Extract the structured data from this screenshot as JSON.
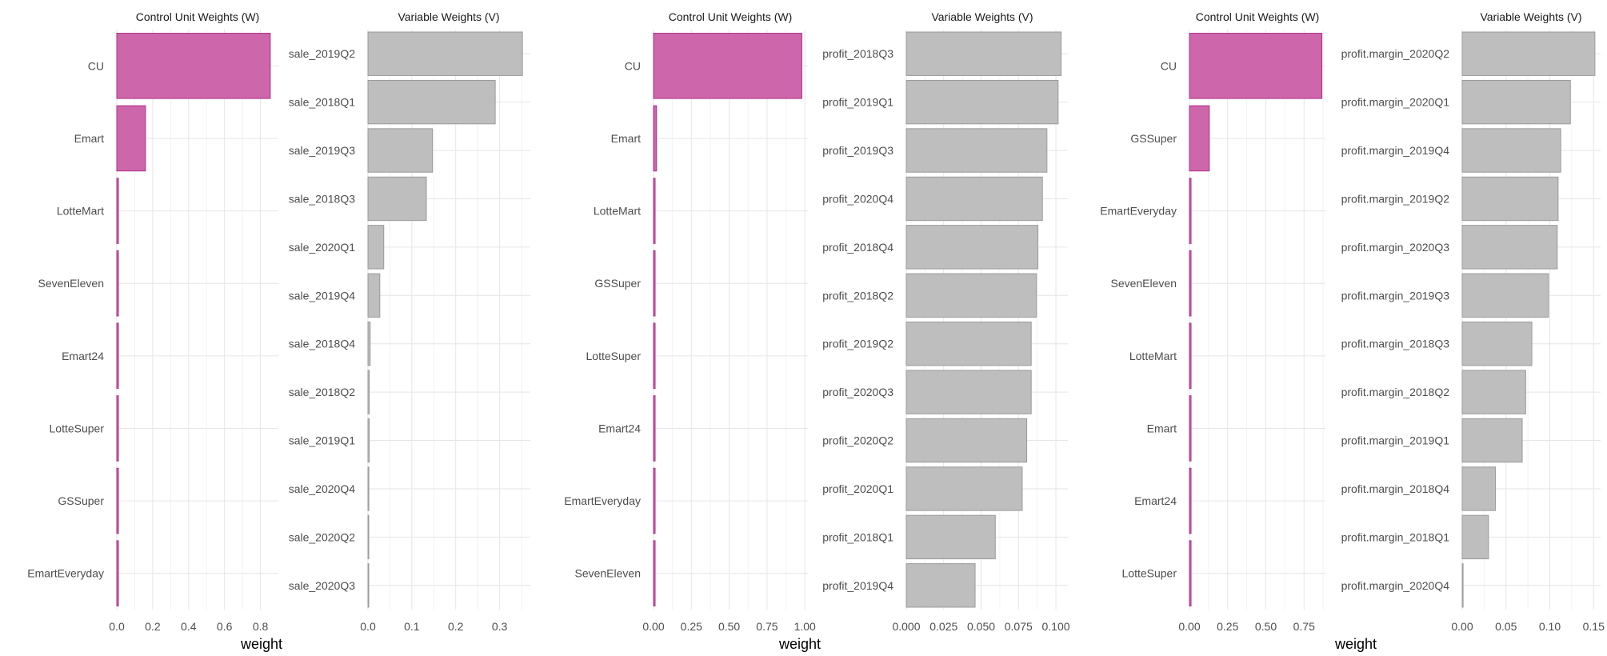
{
  "colors": {
    "unit_bar_fill": "#CD66AA",
    "unit_bar_stroke": "#B0308A",
    "var_bar_fill": "#BEBEBE",
    "var_bar_stroke": "#9A9A9A",
    "grid": "#E6E6E6"
  },
  "chart_data": [
    {
      "type": "bar",
      "orientation": "horizontal",
      "group": 1,
      "title": "Control Unit Weights (W)",
      "xlabel": "",
      "categories": [
        "CU",
        "Emart",
        "LotteMart",
        "SevenEleven",
        "Emart24",
        "LotteSuper",
        "GSSuper",
        "EmartEveryday"
      ],
      "values": [
        0.855,
        0.16,
        0.0,
        0.0,
        0.0,
        0.0,
        0.0,
        0.0
      ],
      "xlim": [
        0,
        0.9
      ],
      "ticks": [
        0.0,
        0.2,
        0.4,
        0.6,
        0.8
      ],
      "tick_labels": [
        "0.0",
        "0.2",
        "0.4",
        "0.6",
        "0.8"
      ]
    },
    {
      "type": "bar",
      "orientation": "horizontal",
      "group": 1,
      "title": "Variable Weights (V)",
      "xlabel": "weight",
      "categories": [
        "sale_2019Q2",
        "sale_2018Q1",
        "sale_2019Q3",
        "sale_2018Q3",
        "sale_2020Q1",
        "sale_2019Q4",
        "sale_2018Q4",
        "sale_2018Q2",
        "sale_2019Q1",
        "sale_2020Q4",
        "sale_2020Q2",
        "sale_2020Q3"
      ],
      "values": [
        0.352,
        0.29,
        0.147,
        0.133,
        0.036,
        0.027,
        0.005,
        0.003,
        0.003,
        0.002,
        0.001,
        0.001
      ],
      "xlim": [
        0,
        0.37
      ],
      "ticks": [
        0.0,
        0.1,
        0.2,
        0.3
      ],
      "tick_labels": [
        "0.0",
        "0.1",
        "0.2",
        "0.3"
      ]
    },
    {
      "type": "bar",
      "orientation": "horizontal",
      "group": 2,
      "title": "Control Unit Weights (W)",
      "xlabel": "",
      "categories": [
        "CU",
        "Emart",
        "LotteMart",
        "GSSuper",
        "LotteSuper",
        "Emart24",
        "EmartEveryday",
        "SevenEleven"
      ],
      "values": [
        0.98,
        0.02,
        0.0,
        0.0,
        0.0,
        0.0,
        0.0,
        0.0
      ],
      "xlim": [
        0,
        1.02
      ],
      "ticks": [
        0.0,
        0.25,
        0.5,
        0.75,
        1.0
      ],
      "tick_labels": [
        "0.00",
        "0.25",
        "0.50",
        "0.75",
        "1.00"
      ]
    },
    {
      "type": "bar",
      "orientation": "horizontal",
      "group": 2,
      "title": "Variable Weights (V)",
      "xlabel": "weight",
      "categories": [
        "profit_2018Q3",
        "profit_2019Q1",
        "profit_2019Q3",
        "profit_2020Q4",
        "profit_2018Q4",
        "profit_2018Q2",
        "profit_2019Q2",
        "profit_2020Q3",
        "profit_2020Q2",
        "profit_2020Q1",
        "profit_2018Q1",
        "profit_2019Q4"
      ],
      "values": [
        0.1035,
        0.1015,
        0.094,
        0.091,
        0.088,
        0.087,
        0.0835,
        0.0835,
        0.0805,
        0.0775,
        0.0595,
        0.046
      ],
      "xlim": [
        0,
        0.108
      ],
      "ticks": [
        0.0,
        0.025,
        0.05,
        0.075,
        0.1
      ],
      "tick_labels": [
        "0.000",
        "0.025",
        "0.050",
        "0.075",
        "0.100"
      ]
    },
    {
      "type": "bar",
      "orientation": "horizontal",
      "group": 3,
      "title": "Control Unit Weights (W)",
      "xlabel": "",
      "categories": [
        "CU",
        "GSSuper",
        "EmartEveryday",
        "SevenEleven",
        "LotteMart",
        "Emart",
        "Emart24",
        "LotteSuper"
      ],
      "values": [
        0.867,
        0.13,
        0.0,
        0.0,
        0.0,
        0.0,
        0.0,
        0.0
      ],
      "xlim": [
        0,
        0.89
      ],
      "ticks": [
        0.0,
        0.25,
        0.5,
        0.75
      ],
      "tick_labels": [
        "0.00",
        "0.25",
        "0.50",
        "0.75"
      ]
    },
    {
      "type": "bar",
      "orientation": "horizontal",
      "group": 3,
      "title": "Variable Weights (V)",
      "xlabel": "weight",
      "categories": [
        "profit.margin_2020Q2",
        "profit.margin_2020Q1",
        "profit.margin_2019Q4",
        "profit.margin_2019Q2",
        "profit.margin_2020Q3",
        "profit.margin_2019Q3",
        "profit.margin_2018Q3",
        "profit.margin_2018Q2",
        "profit.margin_2019Q1",
        "profit.margin_2018Q4",
        "profit.margin_2018Q1",
        "profit.margin_2020Q4"
      ],
      "values": [
        0.1515,
        0.1235,
        0.1125,
        0.1095,
        0.1085,
        0.0985,
        0.0795,
        0.0725,
        0.0685,
        0.038,
        0.03,
        0.001
      ],
      "xlim": [
        0,
        0.158
      ],
      "ticks": [
        0.0,
        0.05,
        0.1,
        0.15
      ],
      "tick_labels": [
        "0.00",
        "0.05",
        "0.10",
        "0.15"
      ]
    }
  ]
}
